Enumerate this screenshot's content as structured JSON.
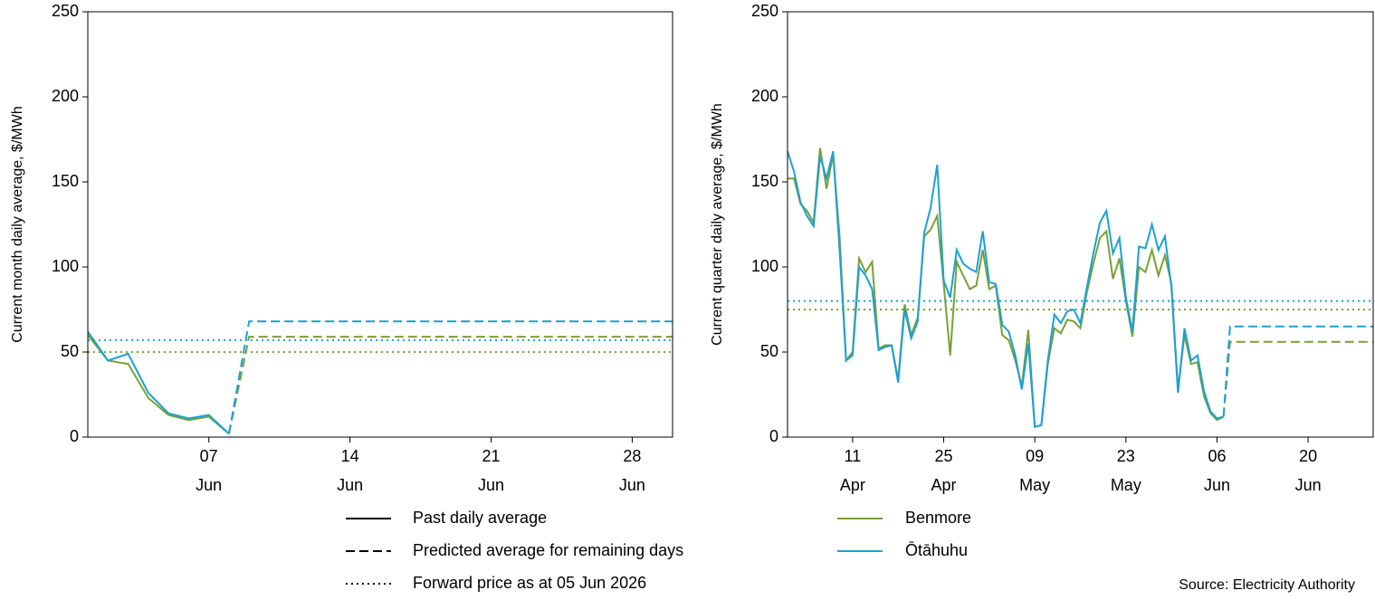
{
  "chart_data": [
    {
      "type": "line",
      "ylabel": "Current month daily average, $/MWh",
      "xlim": [
        1,
        30
      ],
      "ylim": [
        0,
        250
      ],
      "yticks": [
        0,
        50,
        100,
        150,
        200,
        250
      ],
      "xticks": [
        {
          "value": 7,
          "label": "07 Jun"
        },
        {
          "value": 14,
          "label": "14 Jun"
        },
        {
          "value": 21,
          "label": "21 Jun"
        },
        {
          "value": 28,
          "label": "28 Jun"
        }
      ],
      "series": [
        {
          "name": "Benmore",
          "color": "#77a135",
          "dash": "solid",
          "x": [
            1,
            2,
            3,
            4,
            5,
            6,
            7,
            8
          ],
          "values": [
            60,
            45,
            43,
            23,
            13,
            10,
            12,
            2
          ]
        },
        {
          "name": "Ōtāhuhu",
          "color": "#1ba1d6",
          "dash": "solid",
          "x": [
            1,
            2,
            3,
            4,
            5,
            6,
            7,
            8
          ],
          "values": [
            62,
            45,
            49,
            26,
            14,
            11,
            13,
            2
          ]
        },
        {
          "name": "Benmore",
          "color": "#77a135",
          "dash": "dashed",
          "x": [
            8,
            9,
            30
          ],
          "values": [
            2,
            59,
            59
          ]
        },
        {
          "name": "Ōtāhuhu",
          "color": "#1ba1d6",
          "dash": "dashed",
          "x": [
            8,
            9,
            30
          ],
          "values": [
            2,
            68,
            68
          ]
        },
        {
          "name": "Benmore",
          "color": "#77a135",
          "dash": "dotted",
          "x": [
            1,
            30
          ],
          "values": [
            50,
            50
          ]
        },
        {
          "name": "Ōtāhuhu",
          "color": "#1ba1d6",
          "dash": "dotted",
          "x": [
            1,
            30
          ],
          "values": [
            57,
            57
          ]
        }
      ]
    },
    {
      "type": "line",
      "ylabel": "Current quarter daily average, $/MWh",
      "xlim": [
        1,
        91
      ],
      "ylim": [
        0,
        250
      ],
      "yticks": [
        0,
        50,
        100,
        150,
        200,
        250
      ],
      "xticks": [
        {
          "value": 11,
          "label": "11 Apr"
        },
        {
          "value": 25,
          "label": "25 Apr"
        },
        {
          "value": 39,
          "label": "09 May"
        },
        {
          "value": 53,
          "label": "23 May"
        },
        {
          "value": 67,
          "label": "06 Jun"
        },
        {
          "value": 81,
          "label": "20 Jun"
        }
      ],
      "series": [
        {
          "name": "Benmore",
          "color": "#77a135",
          "dash": "solid",
          "x": [
            1,
            2,
            3,
            4,
            5,
            6,
            7,
            8,
            9,
            10,
            11,
            12,
            13,
            14,
            15,
            16,
            17,
            18,
            19,
            20,
            21,
            22,
            23,
            24,
            25,
            26,
            27,
            28,
            29,
            30,
            31,
            32,
            33,
            34,
            35,
            36,
            37,
            38,
            39,
            40,
            41,
            42,
            43,
            44,
            45,
            46,
            47,
            48,
            49,
            50,
            51,
            52,
            53,
            54,
            55,
            56,
            57,
            58,
            59,
            60,
            61,
            62,
            63,
            64,
            65,
            66,
            67,
            68
          ],
          "values": [
            152,
            152,
            137,
            133,
            126,
            170,
            146,
            166,
            118,
            45,
            50,
            105,
            97,
            103,
            52,
            54,
            54,
            34,
            78,
            60,
            70,
            118,
            122,
            130,
            90,
            48,
            103,
            95,
            87,
            89,
            110,
            87,
            89,
            60,
            57,
            45,
            30,
            63,
            6,
            7,
            43,
            64,
            61,
            69,
            68,
            64,
            85,
            102,
            117,
            121,
            93,
            105,
            80,
            59,
            100,
            97,
            110,
            95,
            107,
            90,
            28,
            60,
            43,
            44,
            24,
            14,
            10,
            12
          ]
        },
        {
          "name": "Ōtāhuhu",
          "color": "#1ba1d6",
          "dash": "solid",
          "x": [
            1,
            2,
            3,
            4,
            5,
            6,
            7,
            8,
            9,
            10,
            11,
            12,
            13,
            14,
            15,
            16,
            17,
            18,
            19,
            20,
            21,
            22,
            23,
            24,
            25,
            26,
            27,
            28,
            29,
            30,
            31,
            32,
            33,
            34,
            35,
            36,
            37,
            38,
            39,
            40,
            41,
            42,
            43,
            44,
            45,
            46,
            47,
            48,
            49,
            50,
            51,
            52,
            53,
            54,
            55,
            56,
            57,
            58,
            59,
            60,
            61,
            62,
            63,
            64,
            65,
            66,
            67,
            68
          ],
          "values": [
            168,
            156,
            138,
            130,
            124,
            165,
            152,
            168,
            110,
            45,
            48,
            100,
            95,
            87,
            51,
            53,
            54,
            32,
            75,
            58,
            68,
            120,
            135,
            160,
            92,
            82,
            110,
            102,
            99,
            97,
            121,
            91,
            90,
            66,
            62,
            48,
            28,
            55,
            6,
            7,
            45,
            72,
            67,
            74,
            75,
            67,
            88,
            108,
            126,
            133,
            108,
            117,
            82,
            62,
            112,
            111,
            125,
            110,
            118,
            88,
            26,
            64,
            45,
            48,
            27,
            15,
            11,
            12
          ]
        },
        {
          "name": "Benmore",
          "color": "#77a135",
          "dash": "dashed",
          "x": [
            68,
            69,
            91
          ],
          "values": [
            12,
            56,
            56
          ]
        },
        {
          "name": "Ōtāhuhu",
          "color": "#1ba1d6",
          "dash": "dashed",
          "x": [
            68,
            69,
            91
          ],
          "values": [
            12,
            65,
            65
          ]
        },
        {
          "name": "Benmore",
          "color": "#77a135",
          "dash": "dotted",
          "x": [
            1,
            91
          ],
          "values": [
            75,
            75
          ]
        },
        {
          "name": "Ōtāhuhu",
          "color": "#1ba1d6",
          "dash": "dotted",
          "x": [
            1,
            91
          ],
          "values": [
            80,
            80
          ]
        }
      ]
    }
  ],
  "legend": {
    "line_styles": [
      {
        "label": "Past daily average",
        "dash": "solid"
      },
      {
        "label": "Predicted average for remaining days",
        "dash": "dashed"
      },
      {
        "label": "Forward price as at 05 Jun 2026",
        "dash": "dotted"
      }
    ]
  },
  "source": "Source: Electricity Authority"
}
